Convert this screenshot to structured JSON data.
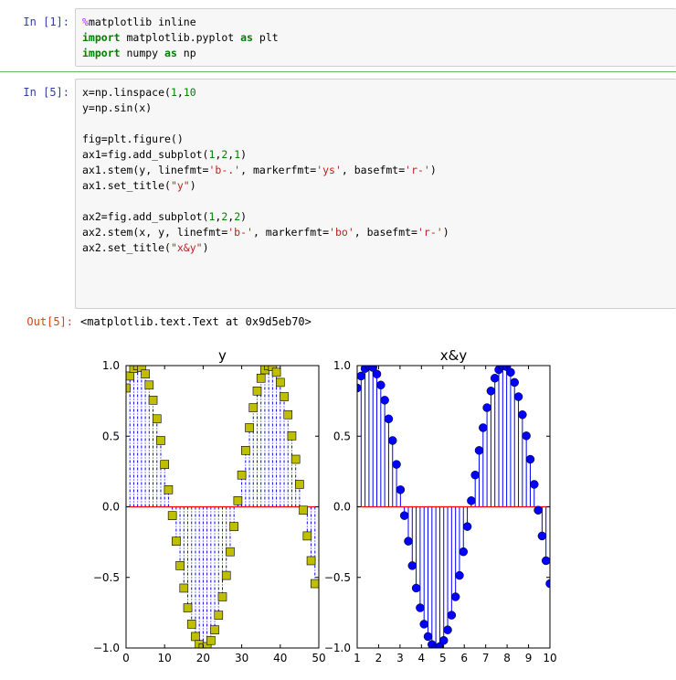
{
  "cells": [
    {
      "prompt": "In  [1]:",
      "lines": [
        [
          {
            "t": "%",
            "c": "magic"
          },
          {
            "t": "matplotlib inline",
            "c": ""
          }
        ],
        [
          {
            "t": "import",
            "c": "kw"
          },
          {
            "t": " matplotlib.pyplot ",
            "c": ""
          },
          {
            "t": "as",
            "c": "kw"
          },
          {
            "t": " plt",
            "c": ""
          }
        ],
        [
          {
            "t": "import",
            "c": "kw"
          },
          {
            "t": " numpy ",
            "c": ""
          },
          {
            "t": "as",
            "c": "kw"
          },
          {
            "t": " np",
            "c": ""
          }
        ]
      ]
    },
    {
      "prompt": "In  [5]:",
      "lines": [
        [
          {
            "t": "x=np.linspace(",
            "c": ""
          },
          {
            "t": "1",
            "c": "num"
          },
          {
            "t": ",",
            "c": ""
          },
          {
            "t": "10",
            "c": "num"
          }
        ],
        [
          {
            "t": "y=np.sin(x)",
            "c": ""
          }
        ],
        [],
        [
          {
            "t": "fig=plt.figure()",
            "c": ""
          }
        ],
        [
          {
            "t": "ax1=fig.add_subplot(",
            "c": ""
          },
          {
            "t": "1",
            "c": "num"
          },
          {
            "t": ",",
            "c": ""
          },
          {
            "t": "2",
            "c": "num"
          },
          {
            "t": ",",
            "c": ""
          },
          {
            "t": "1",
            "c": "num"
          },
          {
            "t": ")",
            "c": ""
          }
        ],
        [
          {
            "t": "ax1.stem(y, linefmt=",
            "c": ""
          },
          {
            "t": "'b-.'",
            "c": "str"
          },
          {
            "t": ", markerfmt=",
            "c": ""
          },
          {
            "t": "'ys'",
            "c": "str"
          },
          {
            "t": ", basefmt=",
            "c": ""
          },
          {
            "t": "'r-'",
            "c": "str"
          },
          {
            "t": ")",
            "c": ""
          }
        ],
        [
          {
            "t": "ax1.set_title(",
            "c": ""
          },
          {
            "t": "\"y\"",
            "c": "str"
          },
          {
            "t": ")",
            "c": ""
          }
        ],
        [],
        [
          {
            "t": "ax2=fig.add_subplot(",
            "c": ""
          },
          {
            "t": "1",
            "c": "num"
          },
          {
            "t": ",",
            "c": ""
          },
          {
            "t": "2",
            "c": "num"
          },
          {
            "t": ",",
            "c": ""
          },
          {
            "t": "2",
            "c": "num"
          },
          {
            "t": ")",
            "c": ""
          }
        ],
        [
          {
            "t": "ax2.stem(x, y, linefmt=",
            "c": ""
          },
          {
            "t": "'b-'",
            "c": "str"
          },
          {
            "t": ", markerfmt=",
            "c": ""
          },
          {
            "t": "'bo'",
            "c": "str"
          },
          {
            "t": ", basefmt=",
            "c": ""
          },
          {
            "t": "'r-'",
            "c": "str"
          },
          {
            "t": ")",
            "c": ""
          }
        ],
        [
          {
            "t": "ax2.set_title(",
            "c": ""
          },
          {
            "t": "\"x&y\"",
            "c": "str"
          },
          {
            "t": ")",
            "c": ""
          }
        ]
      ]
    }
  ],
  "output": {
    "prompt": "Out[5]:",
    "text": "<matplotlib.text.Text at 0x9d5eb70>"
  },
  "chart_data": [
    {
      "type": "stem",
      "title": "y",
      "linefmt": "b-.",
      "markerfmt": "ys",
      "basefmt": "r-",
      "x_from": 0,
      "x_to": 49,
      "n": 50,
      "y_func": "sin(linspace(1,10,50))",
      "xlim": [
        0,
        50
      ],
      "ylim": [
        -1.0,
        1.0
      ],
      "xticks": [
        0,
        10,
        20,
        30,
        40,
        50
      ],
      "yticks": [
        -1.0,
        -0.5,
        0.0,
        0.5,
        1.0
      ],
      "xtick_labels": [
        "0",
        "10",
        "20",
        "30",
        "40",
        "50"
      ],
      "ytick_labels": [
        "−1.0",
        "−0.5",
        "0.0",
        "0.5",
        "1.0"
      ],
      "colors": {
        "line": "#0000ff",
        "marker": "#bfbf00",
        "base": "#ff0000"
      }
    },
    {
      "type": "stem",
      "title": "x&y",
      "linefmt": "b-",
      "markerfmt": "bo",
      "basefmt": "r-",
      "x_from": 1,
      "x_to": 10,
      "n": 50,
      "y_func": "sin(linspace(1,10,50))",
      "xlim": [
        1,
        10
      ],
      "ylim": [
        -1.0,
        1.0
      ],
      "xticks": [
        1,
        2,
        3,
        4,
        5,
        6,
        7,
        8,
        9,
        10
      ],
      "yticks": [
        -1.0,
        -0.5,
        0.0,
        0.5,
        1.0
      ],
      "xtick_labels": [
        "1",
        "2",
        "3",
        "4",
        "5",
        "6",
        "7",
        "8",
        "9",
        "10"
      ],
      "ytick_labels": [
        "−1.0",
        "−0.5",
        "0.0",
        "0.5",
        "1.0"
      ],
      "colors": {
        "line": "#0000ff",
        "marker": "#0000ff",
        "base": "#ff0000"
      }
    }
  ]
}
